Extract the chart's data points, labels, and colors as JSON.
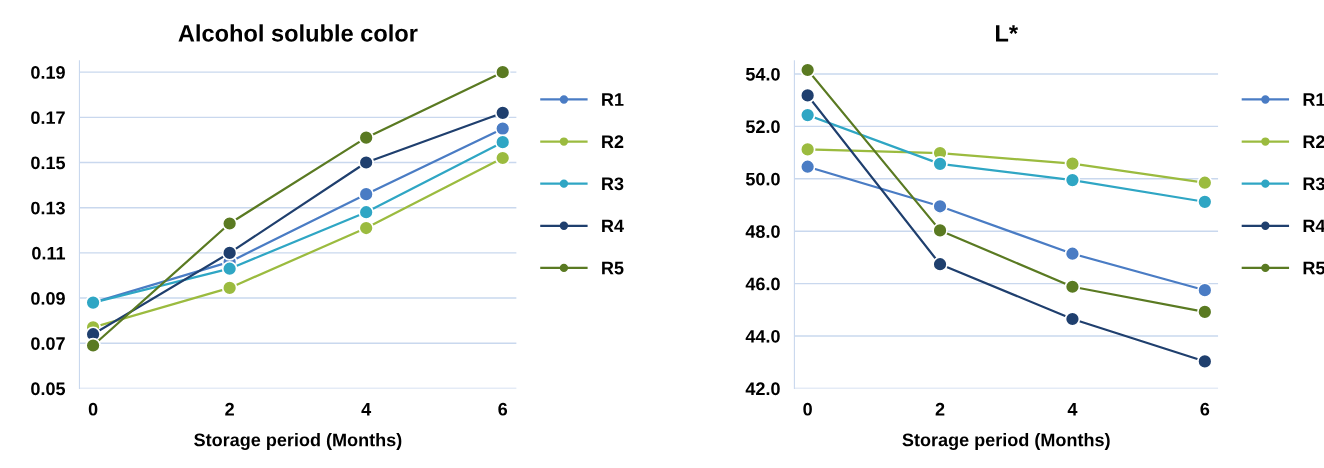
{
  "chart_data": [
    {
      "type": "line",
      "title": "Alcohol soluble color",
      "xlabel": "Storage period (Months)",
      "categories": [
        "0",
        "2",
        "4",
        "6"
      ],
      "ylim": [
        0.05,
        0.195
      ],
      "yticks": [
        0.05,
        0.07,
        0.09,
        0.11,
        0.13,
        0.15,
        0.17,
        0.19
      ],
      "grid": "y",
      "legend": "right",
      "marker": "circle",
      "line_style": "solid",
      "series": [
        {
          "name": "R1",
          "color": "#4a7cc4",
          "values": [
            0.088,
            0.106,
            0.136,
            0.165
          ]
        },
        {
          "name": "R2",
          "color": "#9bbb3f",
          "values": [
            0.077,
            0.0945,
            0.121,
            0.152
          ]
        },
        {
          "name": "R3",
          "color": "#2fa6c4",
          "values": [
            0.088,
            0.103,
            0.128,
            0.159
          ]
        },
        {
          "name": "R4",
          "color": "#1f3f6e",
          "values": [
            0.074,
            0.11,
            0.15,
            0.172
          ]
        },
        {
          "name": "R5",
          "color": "#5a7a22",
          "values": [
            0.069,
            0.123,
            0.161,
            0.19
          ]
        }
      ]
    },
    {
      "type": "line",
      "title": "L*",
      "xlabel": "Storage period (Months)",
      "categories": [
        "0",
        "2",
        "4",
        "6"
      ],
      "ylim": [
        42,
        54.5
      ],
      "yticks": [
        {
          "value": 42,
          "label": "42.0"
        },
        {
          "value": 44,
          "label": "44.0"
        },
        {
          "value": 46,
          "label": "46.0"
        },
        {
          "value": 48,
          "label": "48.0"
        },
        {
          "value": 50,
          "label": "50.0"
        },
        {
          "value": 52,
          "label": "52.0"
        },
        {
          "value": 54,
          "label": "54.0"
        }
      ],
      "grid": "y",
      "legend": "right",
      "marker": "circle",
      "line_style": "solid",
      "series": [
        {
          "name": "R1",
          "color": "#4a7cc4",
          "values": [
            50.46,
            48.95,
            47.14,
            45.75
          ]
        },
        {
          "name": "R2",
          "color": "#9bbb3f",
          "values": [
            51.12,
            50.98,
            50.58,
            49.85
          ]
        },
        {
          "name": "R3",
          "color": "#2fa6c4",
          "values": [
            52.43,
            50.57,
            49.95,
            49.12
          ]
        },
        {
          "name": "R4",
          "color": "#1f3f6e",
          "values": [
            53.18,
            46.74,
            44.65,
            43.03
          ]
        },
        {
          "name": "R5",
          "color": "#5a7a22",
          "values": [
            54.15,
            48.03,
            45.88,
            44.92
          ]
        }
      ]
    }
  ]
}
